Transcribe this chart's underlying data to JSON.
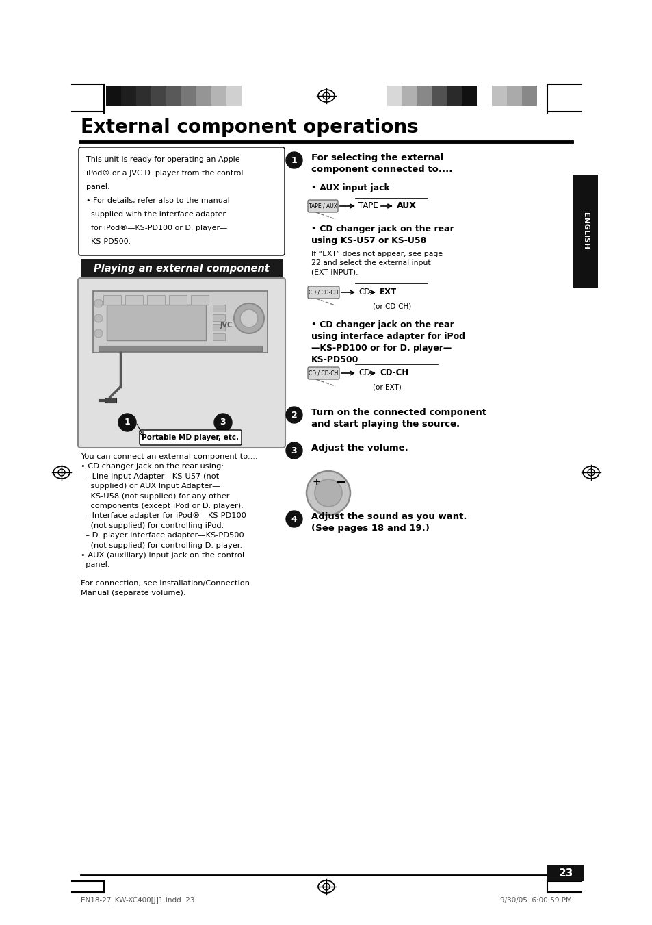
{
  "bg_color": "#ffffff",
  "title": "External component operations",
  "page_number": "23",
  "footer_left": "EN18-27_KW-XC400[J]1.indd  23",
  "footer_right": "9/30/05  6:00:59 PM",
  "section_header": "Playing an external component",
  "intro_box_text": "This unit is ready for operating an Apple\niPod® or a JVC D. player from the control\npanel.\n• For details, refer also to the manual\n  supplied with the interface adapter\n  for iPod®—KS-PD100 or D. player—\n  KS-PD500.",
  "step1_header": "For selecting the external\ncomponent connected to....",
  "step1_aux_label": "• AUX input jack",
  "step1_cd1_header_bold": "• CD changer jack on the rear\nusing KS-U57 or KS-U58",
  "step1_cd1_note": "If “EXT” does not appear, see page\n22 and select the external input\n(EXT INPUT).",
  "step1_cd2_header_bold": "• CD changer jack on the rear\nusing interface adapter for iPod\n—KS-PD100 or for D. player—\nKS-PD500",
  "step2_text": "Turn on the connected component\nand start playing the source.",
  "step3_text": "Adjust the volume.",
  "step4_text": "Adjust the sound as you want.\n(See pages 18 and 19.)",
  "left_body_para1": "You can connect an external component to....",
  "left_body_para2": "• CD changer jack on the rear using:",
  "left_body_para3": "  – Line Input Adapter—KS-U57 (not\n    supplied) or AUX Input Adapter—\n    KS-U58 (not supplied) for any other\n    components (except iPod or D. player).",
  "left_body_para4": "  – Interface adapter for iPod®—KS-PD100\n    (not supplied) for controlling iPod.",
  "left_body_para5": "  – D. player interface adapter—KS-PD500\n    (not supplied) for controlling D. player.",
  "left_body_para6": "• AUX (auxiliary) input jack on the control\n  panel.",
  "connection_note": "For connection, see Installation/Connection\nManual (separate volume).",
  "portable_label": "Portable MD player, etc.",
  "english_tab": "ENGLISH",
  "bar_left_colors": [
    "#111111",
    "#1e1e1e",
    "#2e2e2e",
    "#444444",
    "#595959",
    "#777777",
    "#959595",
    "#b4b4b4",
    "#d0d0d0",
    "#ffffff"
  ],
  "bar_right_colors": [
    "#d8d8d8",
    "#b0b0b0",
    "#888888",
    "#525252",
    "#2a2a2a",
    "#111111",
    "#ffffff",
    "#c0c0c0",
    "#aaaaaa",
    "#888888"
  ]
}
